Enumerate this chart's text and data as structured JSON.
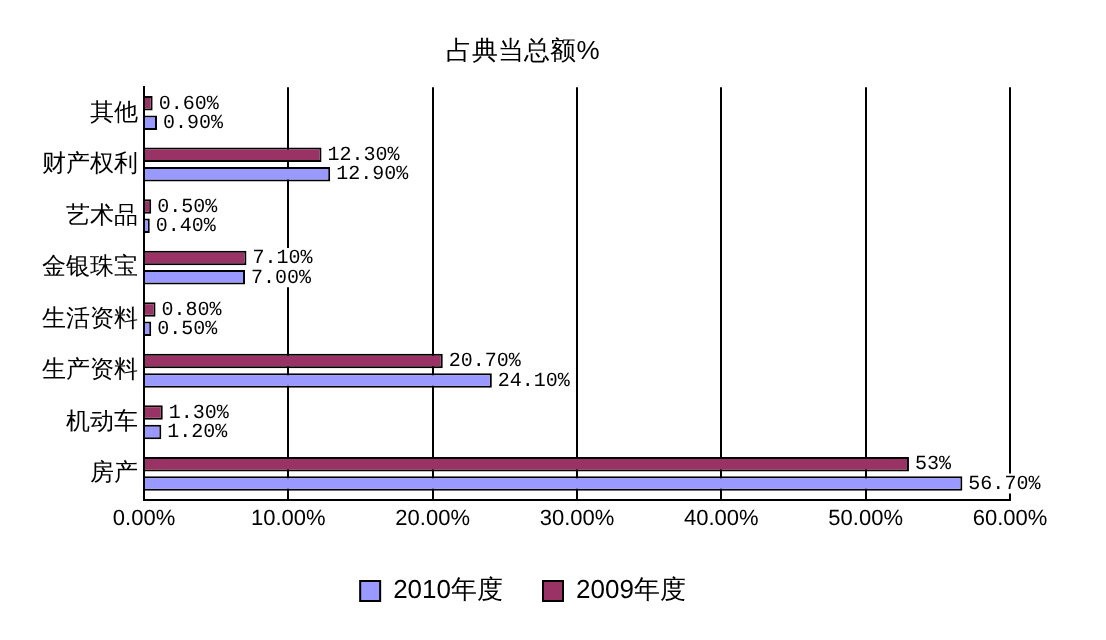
{
  "chart_data": {
    "type": "bar",
    "orientation": "horizontal",
    "title": "占典当总额%",
    "categories": [
      "其他",
      "财产权利",
      "艺术品",
      "金银珠宝",
      "生活资料",
      "生产资料",
      "机动车",
      "房产"
    ],
    "series": [
      {
        "name": "2009年度",
        "color": "#993366",
        "values": [
          0.6,
          12.3,
          0.5,
          7.1,
          0.8,
          20.7,
          1.3,
          53
        ],
        "value_labels": [
          "0.60%",
          "12.30%",
          "0.50%",
          "7.10%",
          "0.80%",
          "20.70%",
          "1.30%",
          "53%"
        ]
      },
      {
        "name": "2010年度",
        "color": "#9999ff",
        "values": [
          0.9,
          12.9,
          0.4,
          7.0,
          0.5,
          24.1,
          1.2,
          56.7
        ],
        "value_labels": [
          "0.90%",
          "12.90%",
          "0.40%",
          "7.00%",
          "0.50%",
          "24.10%",
          "1.20%",
          "56.70%"
        ]
      }
    ],
    "xlim": [
      0,
      60
    ],
    "xticks": [
      {
        "value": 0,
        "label": "0.00%"
      },
      {
        "value": 10,
        "label": "10.00%"
      },
      {
        "value": 20,
        "label": "20.00%"
      },
      {
        "value": 30,
        "label": "30.00%"
      },
      {
        "value": 40,
        "label": "40.00%"
      },
      {
        "value": 50,
        "label": "50.00%"
      },
      {
        "value": 60,
        "label": "60.00%"
      }
    ],
    "grid": "x",
    "legend": "bottom"
  }
}
